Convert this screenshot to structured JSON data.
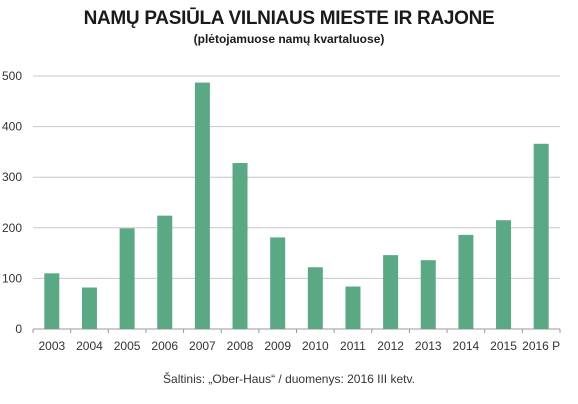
{
  "title": "NAMŲ PASIŪLA VILNIAUS MIESTE IR RAJONE",
  "subtitle": "(plėtojamuose namų kvartaluose)",
  "source": "Šaltinis: „Ober-Haus“ / duomenys: 2016 III ketv.",
  "colors": {
    "bar": "#5ba885",
    "grid": "#c8c8c8",
    "axis": "#9a9a9a"
  },
  "chart_data": {
    "type": "bar",
    "title": "NAMŲ PASIŪLA VILNIAUS MIESTE IR RAJONE",
    "subtitle": "(plėtojamuose namų kvartaluose)",
    "categories": [
      "2003",
      "2004",
      "2005",
      "2006",
      "2007",
      "2008",
      "2009",
      "2010",
      "2011",
      "2012",
      "2013",
      "2014",
      "2015",
      "2016 P"
    ],
    "values": [
      110,
      82,
      199,
      224,
      487,
      328,
      181,
      122,
      84,
      146,
      136,
      186,
      215,
      366
    ],
    "yticks": [
      "0",
      "100",
      "200",
      "300",
      "400",
      "500"
    ],
    "ylim": [
      0,
      500
    ],
    "grid": true,
    "xlabel": "",
    "ylabel": ""
  }
}
